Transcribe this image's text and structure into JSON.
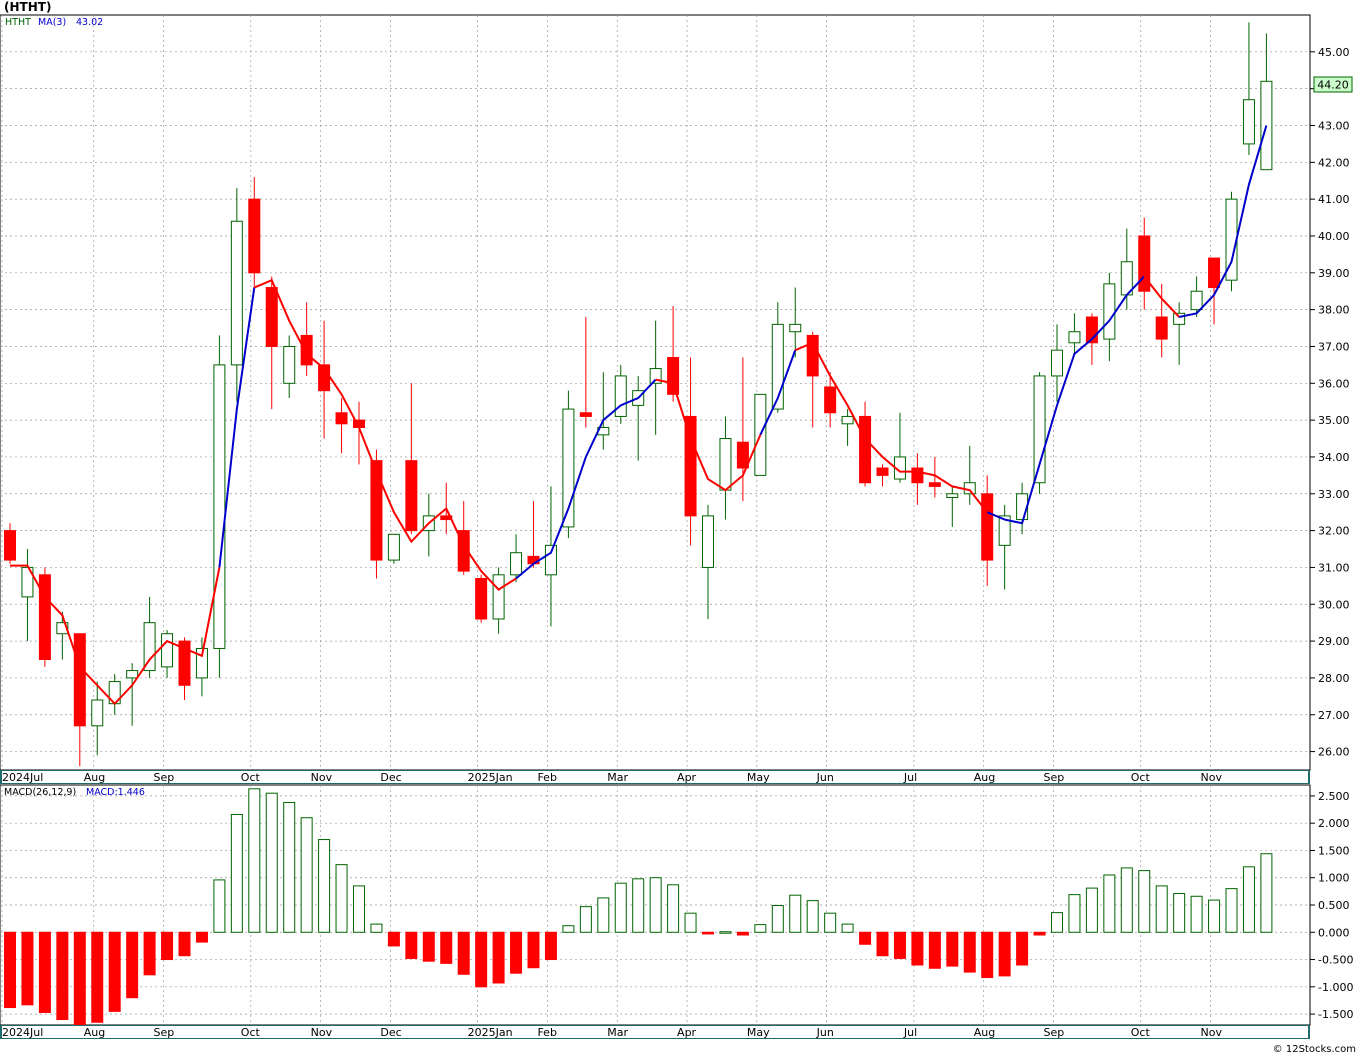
{
  "header": {
    "title": "(HTHT)"
  },
  "credit": "© 12Stocks.com",
  "colors": {
    "up": "#006400",
    "down": "#ff0000",
    "ma_up": "#0000cc",
    "ma_down": "#ff0000",
    "grid": "#999999",
    "axis_band": "#1f6b6b",
    "last_price_bg": "#ccffcc"
  },
  "chart_data": [
    {
      "type": "candlestick",
      "legend": {
        "symbol": "HTHT",
        "ma_label": "MA(3)",
        "ma_value": "43.02"
      },
      "last_price_label": "44.20",
      "ylim": [
        25.5,
        46.0
      ],
      "yticks": [
        "26.00",
        "27.00",
        "28.00",
        "29.00",
        "30.00",
        "31.00",
        "32.00",
        "33.00",
        "34.00",
        "35.00",
        "36.00",
        "37.00",
        "38.00",
        "39.00",
        "40.00",
        "41.00",
        "42.00",
        "43.00",
        "44.00",
        "45.00"
      ],
      "xticks": [
        {
          "label": "2024Jul",
          "i": -0.5
        },
        {
          "label": "Aug",
          "i": 4.8
        },
        {
          "label": "Sep",
          "i": 8.8
        },
        {
          "label": "Oct",
          "i": 13.8
        },
        {
          "label": "Nov",
          "i": 17.8
        },
        {
          "label": "Dec",
          "i": 21.8
        },
        {
          "label": "2025Jan",
          "i": 26.8
        },
        {
          "label": "Feb",
          "i": 30.8
        },
        {
          "label": "Mar",
          "i": 34.8
        },
        {
          "label": "Apr",
          "i": 38.8
        },
        {
          "label": "May",
          "i": 42.8
        },
        {
          "label": "Jun",
          "i": 46.8
        },
        {
          "label": "Jul",
          "i": 51.8
        },
        {
          "label": "Aug",
          "i": 55.8
        },
        {
          "label": "Sep",
          "i": 59.8
        },
        {
          "label": "Oct",
          "i": 64.8
        },
        {
          "label": "Nov",
          "i": 68.8
        }
      ],
      "candles": [
        {
          "o": 32.0,
          "h": 32.2,
          "l": 31.1,
          "c": 31.2
        },
        {
          "o": 30.2,
          "h": 31.5,
          "l": 29.0,
          "c": 31.0
        },
        {
          "o": 30.8,
          "h": 31.0,
          "l": 28.3,
          "c": 28.5
        },
        {
          "o": 29.2,
          "h": 29.8,
          "l": 28.5,
          "c": 29.5
        },
        {
          "o": 29.2,
          "h": 29.2,
          "l": 25.6,
          "c": 26.7
        },
        {
          "o": 26.7,
          "h": 27.9,
          "l": 25.9,
          "c": 27.4
        },
        {
          "o": 27.3,
          "h": 28.1,
          "l": 27.0,
          "c": 27.9
        },
        {
          "o": 28.0,
          "h": 28.4,
          "l": 26.7,
          "c": 28.2
        },
        {
          "o": 28.2,
          "h": 30.2,
          "l": 28.0,
          "c": 29.5
        },
        {
          "o": 28.3,
          "h": 29.3,
          "l": 28.0,
          "c": 29.2
        },
        {
          "o": 29.0,
          "h": 29.1,
          "l": 27.4,
          "c": 27.8
        },
        {
          "o": 28.0,
          "h": 29.1,
          "l": 27.5,
          "c": 28.8
        },
        {
          "o": 28.8,
          "h": 37.3,
          "l": 28.0,
          "c": 36.5
        },
        {
          "o": 36.5,
          "h": 41.3,
          "l": 35.5,
          "c": 40.4
        },
        {
          "o": 41.0,
          "h": 41.6,
          "l": 38.5,
          "c": 39.0
        },
        {
          "o": 38.6,
          "h": 38.9,
          "l": 35.3,
          "c": 37.0
        },
        {
          "o": 36.0,
          "h": 37.3,
          "l": 35.6,
          "c": 37.0
        },
        {
          "o": 37.3,
          "h": 38.2,
          "l": 36.2,
          "c": 36.5
        },
        {
          "o": 36.5,
          "h": 37.7,
          "l": 34.5,
          "c": 35.8
        },
        {
          "o": 35.2,
          "h": 35.6,
          "l": 34.1,
          "c": 34.9
        },
        {
          "o": 35.0,
          "h": 35.5,
          "l": 33.8,
          "c": 34.8
        },
        {
          "o": 33.9,
          "h": 34.2,
          "l": 30.7,
          "c": 31.2
        },
        {
          "o": 31.2,
          "h": 31.9,
          "l": 31.1,
          "c": 31.9
        },
        {
          "o": 33.9,
          "h": 36.0,
          "l": 31.9,
          "c": 32.0
        },
        {
          "o": 32.0,
          "h": 33.0,
          "l": 31.3,
          "c": 32.4
        },
        {
          "o": 32.4,
          "h": 33.3,
          "l": 31.9,
          "c": 32.3
        },
        {
          "o": 32.0,
          "h": 32.8,
          "l": 30.8,
          "c": 30.9
        },
        {
          "o": 30.7,
          "h": 30.8,
          "l": 29.5,
          "c": 29.6
        },
        {
          "o": 29.6,
          "h": 31.0,
          "l": 29.2,
          "c": 30.8
        },
        {
          "o": 30.8,
          "h": 31.9,
          "l": 30.6,
          "c": 31.4
        },
        {
          "o": 31.3,
          "h": 32.8,
          "l": 31.0,
          "c": 31.1
        },
        {
          "o": 30.8,
          "h": 33.2,
          "l": 29.4,
          "c": 31.6
        },
        {
          "o": 32.1,
          "h": 35.8,
          "l": 31.8,
          "c": 35.3
        },
        {
          "o": 35.2,
          "h": 37.8,
          "l": 34.8,
          "c": 35.1
        },
        {
          "o": 34.6,
          "h": 36.3,
          "l": 34.2,
          "c": 34.8
        },
        {
          "o": 35.1,
          "h": 36.5,
          "l": 34.9,
          "c": 36.2
        },
        {
          "o": 35.4,
          "h": 36.2,
          "l": 33.9,
          "c": 35.8
        },
        {
          "o": 36.0,
          "h": 37.7,
          "l": 34.6,
          "c": 36.4
        },
        {
          "o": 36.7,
          "h": 38.1,
          "l": 35.5,
          "c": 35.7
        },
        {
          "o": 35.1,
          "h": 36.7,
          "l": 31.6,
          "c": 32.4
        },
        {
          "o": 31.0,
          "h": 32.7,
          "l": 29.6,
          "c": 32.4
        },
        {
          "o": 33.1,
          "h": 35.1,
          "l": 32.3,
          "c": 34.5
        },
        {
          "o": 34.4,
          "h": 36.7,
          "l": 32.8,
          "c": 33.7
        },
        {
          "o": 33.5,
          "h": 35.7,
          "l": 33.5,
          "c": 35.7
        },
        {
          "o": 35.3,
          "h": 38.2,
          "l": 35.2,
          "c": 37.6
        },
        {
          "o": 37.4,
          "h": 38.6,
          "l": 36.7,
          "c": 37.6
        },
        {
          "o": 37.3,
          "h": 37.4,
          "l": 34.8,
          "c": 36.2
        },
        {
          "o": 35.9,
          "h": 36.3,
          "l": 34.8,
          "c": 35.2
        },
        {
          "o": 34.9,
          "h": 35.3,
          "l": 34.3,
          "c": 35.1
        },
        {
          "o": 35.1,
          "h": 35.5,
          "l": 33.2,
          "c": 33.3
        },
        {
          "o": 33.7,
          "h": 33.8,
          "l": 33.2,
          "c": 33.5
        },
        {
          "o": 33.4,
          "h": 35.2,
          "l": 33.3,
          "c": 34.0
        },
        {
          "o": 33.7,
          "h": 34.1,
          "l": 32.7,
          "c": 33.3
        },
        {
          "o": 33.3,
          "h": 34.0,
          "l": 32.9,
          "c": 33.2
        },
        {
          "o": 32.9,
          "h": 33.2,
          "l": 32.1,
          "c": 33.0
        },
        {
          "o": 33.0,
          "h": 34.3,
          "l": 32.7,
          "c": 33.3
        },
        {
          "o": 33.0,
          "h": 33.5,
          "l": 30.5,
          "c": 31.2
        },
        {
          "o": 31.6,
          "h": 32.7,
          "l": 30.4,
          "c": 32.4
        },
        {
          "o": 32.3,
          "h": 33.3,
          "l": 31.9,
          "c": 33.0
        },
        {
          "o": 33.3,
          "h": 36.3,
          "l": 33.0,
          "c": 36.2
        },
        {
          "o": 36.2,
          "h": 37.6,
          "l": 35.5,
          "c": 36.9
        },
        {
          "o": 37.1,
          "h": 37.9,
          "l": 36.8,
          "c": 37.4
        },
        {
          "o": 37.8,
          "h": 37.9,
          "l": 36.5,
          "c": 37.1
        },
        {
          "o": 37.2,
          "h": 39.0,
          "l": 36.6,
          "c": 38.7
        },
        {
          "o": 38.4,
          "h": 40.2,
          "l": 38.0,
          "c": 39.3
        },
        {
          "o": 40.0,
          "h": 40.5,
          "l": 38.0,
          "c": 38.5
        },
        {
          "o": 37.8,
          "h": 38.7,
          "l": 36.7,
          "c": 37.2
        },
        {
          "o": 37.6,
          "h": 38.2,
          "l": 36.5,
          "c": 37.9
        },
        {
          "o": 38.0,
          "h": 38.9,
          "l": 37.8,
          "c": 38.5
        },
        {
          "o": 39.4,
          "h": 39.4,
          "l": 37.6,
          "c": 38.6
        },
        {
          "o": 38.8,
          "h": 41.2,
          "l": 38.5,
          "c": 41.0
        },
        {
          "o": 42.5,
          "h": 45.8,
          "l": 42.2,
          "c": 43.7
        },
        {
          "o": 41.8,
          "h": 45.5,
          "l": 41.8,
          "c": 44.2
        }
      ],
      "ma": [
        31.05,
        31.05,
        30.2,
        29.7,
        28.3,
        27.8,
        27.3,
        27.8,
        28.5,
        29.0,
        28.8,
        28.6,
        31.0,
        35.3,
        38.6,
        38.8,
        37.7,
        36.8,
        36.4,
        35.7,
        34.8,
        33.6,
        32.5,
        31.7,
        32.2,
        32.6,
        31.6,
        30.9,
        30.4,
        30.7,
        31.1,
        31.4,
        32.6,
        34.0,
        35.0,
        35.4,
        35.6,
        36.1,
        36.0,
        34.5,
        33.4,
        33.1,
        33.5,
        34.6,
        35.6,
        36.9,
        37.1,
        36.2,
        35.4,
        34.5,
        34.0,
        33.6,
        33.6,
        33.5,
        33.2,
        33.1,
        32.5,
        32.3,
        32.2,
        33.8,
        35.4,
        36.8,
        37.2,
        37.7,
        38.4,
        38.9,
        38.3,
        37.8,
        37.9,
        38.4,
        39.3,
        41.4,
        43.0
      ],
      "ma_split": [
        12,
        14,
        29,
        37,
        43,
        45,
        56,
        65,
        67
      ],
      "ma_dirs": [
        "down",
        "up",
        "down",
        "up",
        "down",
        "up",
        "down",
        "up",
        "down",
        "up"
      ]
    },
    {
      "type": "bar",
      "legend": {
        "name": "MACD(26,12,9)",
        "value_label": "MACD:1.446"
      },
      "ylim": [
        -1.7,
        2.7
      ],
      "yticks": [
        "2.500",
        "2.000",
        "1.500",
        "1.000",
        "0.500",
        "0.000",
        "-0.500",
        "-1.000",
        "-1.500"
      ],
      "values": [
        -1.38,
        -1.33,
        -1.47,
        -1.6,
        -1.7,
        -1.65,
        -1.45,
        -1.2,
        -0.78,
        -0.5,
        -0.43,
        -0.18,
        0.96,
        2.16,
        2.63,
        2.55,
        2.38,
        2.1,
        1.7,
        1.24,
        0.85,
        0.15,
        -0.25,
        -0.48,
        -0.53,
        -0.57,
        -0.77,
        -1.0,
        -0.93,
        -0.75,
        -0.65,
        -0.5,
        0.12,
        0.47,
        0.63,
        0.9,
        0.98,
        1.0,
        0.87,
        0.35,
        -0.03,
        0.01,
        -0.05,
        0.14,
        0.49,
        0.68,
        0.58,
        0.35,
        0.15,
        -0.22,
        -0.43,
        -0.48,
        -0.6,
        -0.66,
        -0.62,
        -0.73,
        -0.83,
        -0.8,
        -0.6,
        -0.05,
        0.36,
        0.69,
        0.81,
        1.05,
        1.18,
        1.13,
        0.85,
        0.71,
        0.66,
        0.59,
        0.8,
        1.2,
        1.44
      ]
    }
  ]
}
